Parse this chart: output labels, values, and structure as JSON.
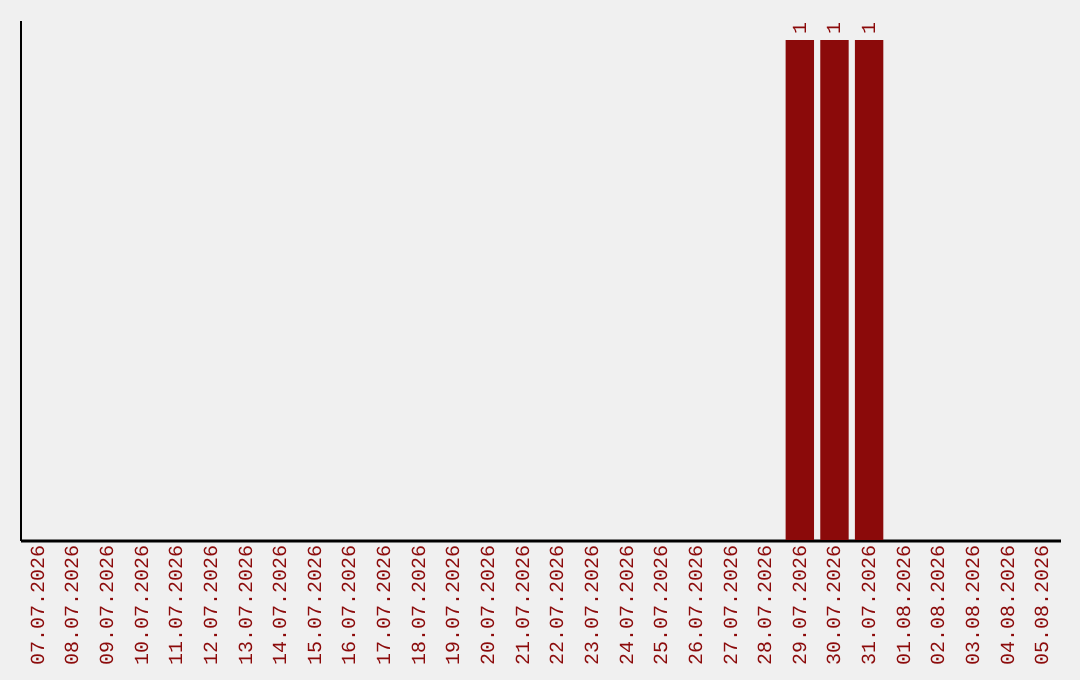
{
  "chart_data": {
    "type": "bar",
    "categories": [
      "07.07.2026",
      "08.07.2026",
      "09.07.2026",
      "10.07.2026",
      "11.07.2026",
      "12.07.2026",
      "13.07.2026",
      "14.07.2026",
      "15.07.2026",
      "16.07.2026",
      "17.07.2026",
      "18.07.2026",
      "19.07.2026",
      "20.07.2026",
      "21.07.2026",
      "22.07.2026",
      "23.07.2026",
      "24.07.2026",
      "25.07.2026",
      "26.07.2026",
      "27.07.2026",
      "28.07.2026",
      "29.07.2026",
      "30.07.2026",
      "31.07.2026",
      "01.08.2026",
      "02.08.2026",
      "03.08.2026",
      "04.08.2026",
      "05.08.2026"
    ],
    "values": [
      null,
      null,
      null,
      null,
      null,
      null,
      null,
      null,
      null,
      null,
      null,
      null,
      null,
      null,
      null,
      null,
      null,
      null,
      null,
      null,
      null,
      null,
      1,
      1,
      1,
      null,
      null,
      null,
      null,
      null
    ],
    "color": "#8b0a0a",
    "data_labels": true,
    "grid": false
  }
}
